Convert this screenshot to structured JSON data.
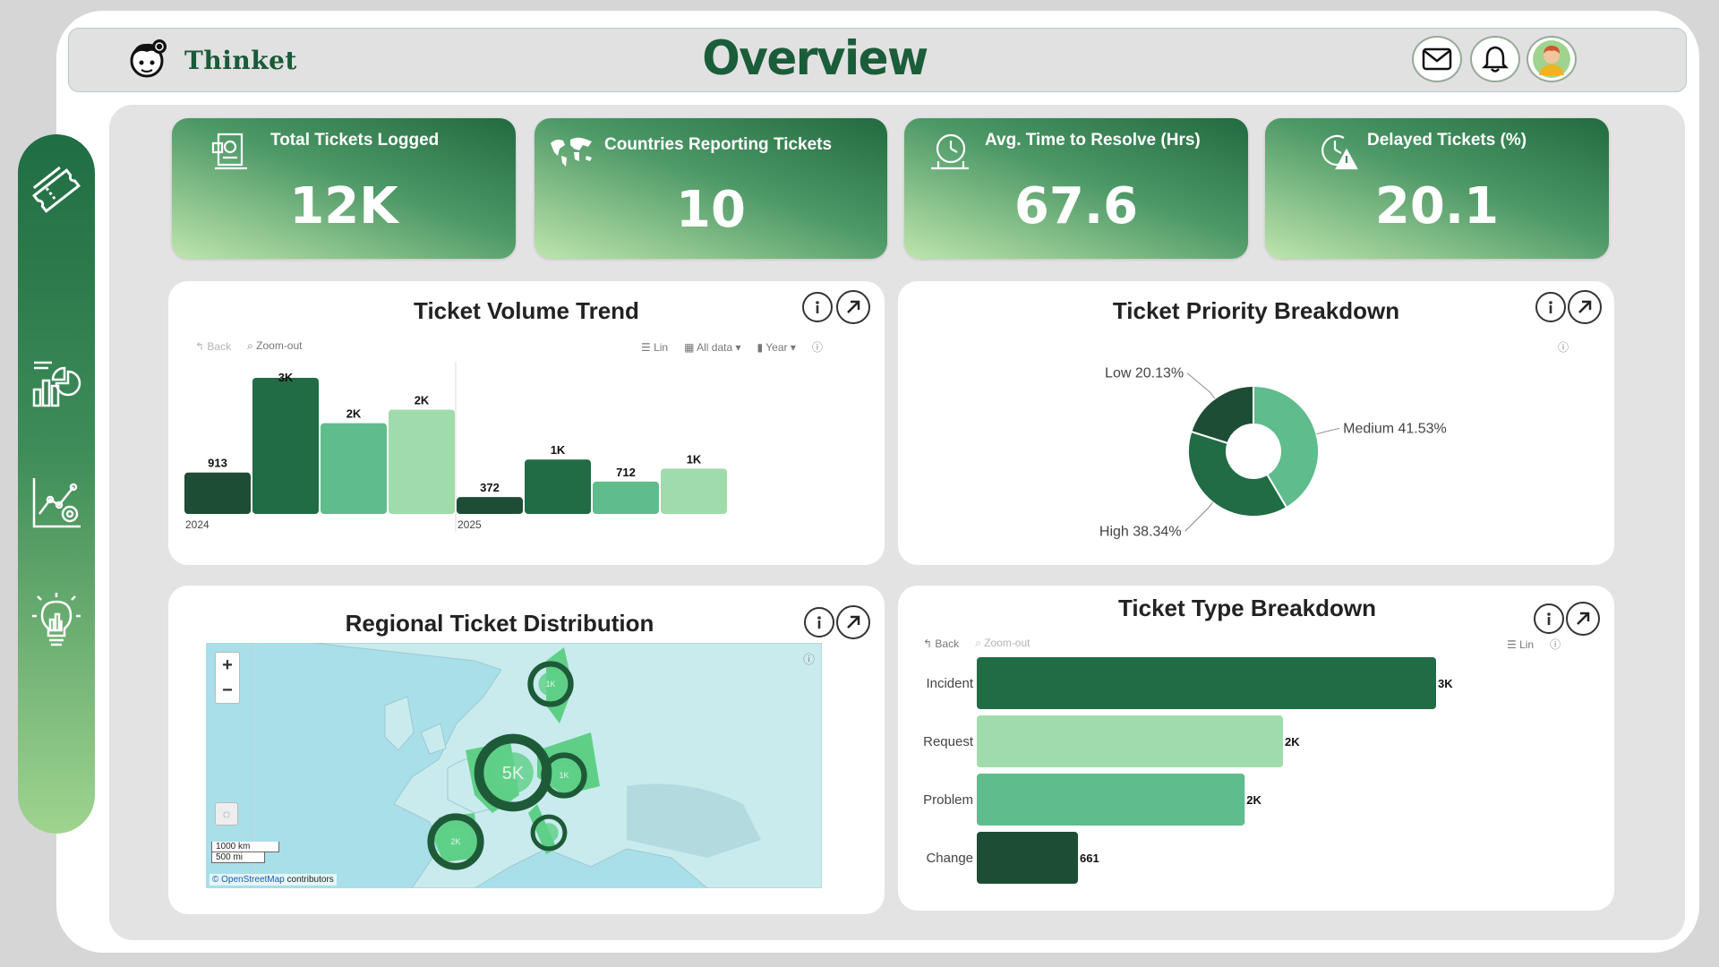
{
  "brand": {
    "name": "Thinket"
  },
  "page": {
    "title": "Overview"
  },
  "kpis": [
    {
      "title": "Total Tickets Logged",
      "value": "12K",
      "icon": "receipt-icon"
    },
    {
      "title": "Countries Reporting Tickets",
      "value": "10",
      "icon": "world-map-icon"
    },
    {
      "title": "Avg. Time to Resolve (Hrs)",
      "value": "67.6",
      "icon": "clock-icon"
    },
    {
      "title": "Delayed Tickets (%)",
      "value": "20.1",
      "icon": "alert-clock-icon"
    }
  ],
  "trend": {
    "title": "Ticket Volume Trend",
    "toolbar": {
      "back": "Back",
      "zoom_out": "Zoom-out",
      "scale": "Lin",
      "filter": "All data",
      "period": "Year"
    }
  },
  "priority": {
    "title": "Ticket Priority Breakdown"
  },
  "regional": {
    "title": "Regional Ticket Distribution",
    "zoom_in": "+",
    "zoom_out": "−",
    "scale_km": "1000 km",
    "scale_mi": "500 mi",
    "attribution_link": "© OpenStreetMap",
    "attribution_rest": " contributors",
    "bubbles": [
      {
        "label": "5K",
        "value": 5000
      },
      {
        "label": "2K",
        "value": 2000
      },
      {
        "label": "1K",
        "value": 1000
      },
      {
        "label": "1K",
        "value": 1000
      },
      {
        "label": "",
        "value": 400
      }
    ]
  },
  "type": {
    "title": "Ticket Type Breakdown",
    "toolbar": {
      "back": "Back",
      "zoom_out": "Zoom-out",
      "scale": "Lin"
    }
  },
  "chart_data": [
    {
      "type": "bar",
      "title": "Ticket Volume Trend",
      "groups": [
        "2024",
        "2025"
      ],
      "series_colors": [
        "#1e4d35",
        "#216b45",
        "#5fbc8d",
        "#a0dbab"
      ],
      "bars": [
        {
          "group": "2024",
          "value": 913,
          "label": "913"
        },
        {
          "group": "2024",
          "value": 3000,
          "label": "3K"
        },
        {
          "group": "2024",
          "value": 2000,
          "label": "2K"
        },
        {
          "group": "2024",
          "value": 2300,
          "label": "2K"
        },
        {
          "group": "2025",
          "value": 372,
          "label": "372"
        },
        {
          "group": "2025",
          "value": 1200,
          "label": "1K"
        },
        {
          "group": "2025",
          "value": 712,
          "label": "712"
        },
        {
          "group": "2025",
          "value": 1000,
          "label": "1K"
        }
      ],
      "ylim": [
        0,
        3000
      ]
    },
    {
      "type": "pie",
      "title": "Ticket Priority Breakdown",
      "slices": [
        {
          "name": "Medium",
          "value": 41.53,
          "label": "Medium 41.53%",
          "color": "#5fbc8d"
        },
        {
          "name": "High",
          "value": 38.34,
          "label": "High 38.34%",
          "color": "#216b45"
        },
        {
          "name": "Low",
          "value": 20.13,
          "label": "Low 20.13%",
          "color": "#1e4d35"
        }
      ]
    },
    {
      "type": "bar",
      "orientation": "horizontal",
      "title": "Ticket Type Breakdown",
      "categories": [
        "Incident",
        "Request",
        "Problem",
        "Change"
      ],
      "values": [
        3000,
        2000,
        1750,
        661
      ],
      "labels": [
        "3K",
        "2K",
        "2K",
        "661"
      ],
      "colors": [
        "#216b45",
        "#a0dbab",
        "#5fbc8d",
        "#1e4d35"
      ],
      "xlim": [
        0,
        3000
      ]
    }
  ]
}
